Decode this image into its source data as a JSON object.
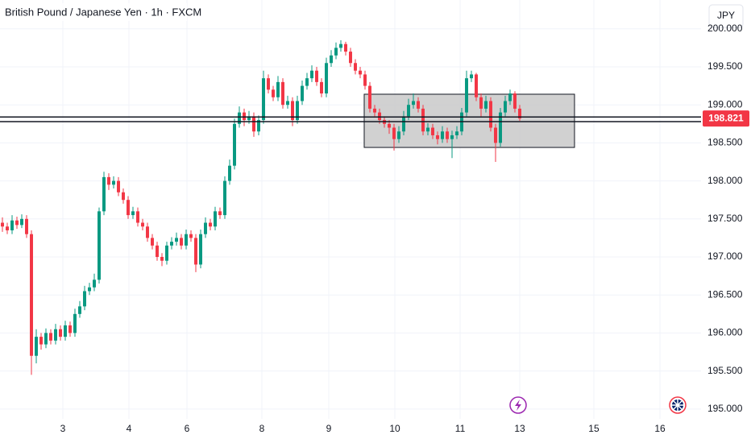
{
  "chart_data": {
    "type": "candlestick",
    "title": "British Pound / Japanese Yen · 1h · FXCM",
    "currency_button": "JPY",
    "up_color": "#089981",
    "down_color": "#f23645",
    "xlim": [
      0,
      145
    ],
    "xticks": [
      {
        "value": 13,
        "label": "3"
      },
      {
        "value": 26.67,
        "label": "4"
      },
      {
        "value": 38.67,
        "label": "6"
      },
      {
        "value": 54.17,
        "label": "8"
      },
      {
        "value": 68,
        "label": "9"
      },
      {
        "value": 81.67,
        "label": "10"
      },
      {
        "value": 95.17,
        "label": "11"
      },
      {
        "value": 107.5,
        "label": "13"
      },
      {
        "value": 122.83,
        "label": "15"
      },
      {
        "value": 136.5,
        "label": "16"
      }
    ],
    "ylim": [
      194.871,
      200.379
    ],
    "yticks": [
      {
        "value": 195,
        "label": "195.000"
      },
      {
        "value": 195.5,
        "label": "195.500"
      },
      {
        "value": 196,
        "label": "196.000"
      },
      {
        "value": 196.5,
        "label": "196.500"
      },
      {
        "value": 197,
        "label": "197.000"
      },
      {
        "value": 197.5,
        "label": "197.500"
      },
      {
        "value": 198,
        "label": "198.000"
      },
      {
        "value": 198.5,
        "label": "198.500"
      },
      {
        "value": 199,
        "label": "199.000"
      },
      {
        "value": 199.5,
        "label": "199.500"
      },
      {
        "value": 200,
        "label": "200.000"
      }
    ],
    "grid": true,
    "open": [
      197.45,
      197.4,
      197.35,
      197.48,
      197.42,
      197.5,
      197.3,
      195.7,
      195.95,
      195.85,
      196.0,
      195.9,
      196.05,
      195.95,
      196.1,
      196.0,
      196.25,
      196.35,
      196.55,
      196.6,
      196.7,
      197.6,
      198.05,
      197.95,
      198.0,
      197.85,
      197.75,
      197.55,
      197.6,
      197.45,
      197.4,
      197.25,
      197.15,
      197.0,
      196.95,
      197.15,
      197.2,
      197.25,
      197.15,
      197.3,
      197.25,
      196.9,
      197.3,
      197.45,
      197.4,
      197.6,
      197.55,
      198.0,
      198.2,
      198.75,
      198.9,
      198.8,
      198.85,
      198.65,
      198.8,
      199.35,
      199.2,
      199.1,
      199.3,
      199.0,
      199.05,
      198.8,
      199.05,
      199.25,
      199.35,
      199.45,
      199.3,
      199.15,
      199.55,
      199.65,
      199.75,
      199.8,
      199.7,
      199.55,
      199.45,
      199.4,
      199.25,
      198.95,
      198.9,
      198.8,
      198.75,
      198.7,
      198.55,
      198.65,
      198.85,
      199.0,
      199.05,
      198.95,
      198.65,
      198.7,
      198.6,
      198.55,
      198.65,
      198.55,
      198.6,
      198.65,
      198.9,
      199.35,
      199.4,
      199.1,
      198.95,
      199.05,
      198.7,
      198.5,
      198.9,
      199.05,
      199.15,
      198.95
    ],
    "high": [
      197.52,
      197.45,
      197.55,
      197.53,
      197.56,
      197.55,
      197.35,
      196.05,
      196.0,
      196.06,
      196.05,
      196.12,
      196.1,
      196.16,
      196.15,
      196.32,
      196.42,
      196.62,
      196.66,
      196.78,
      197.65,
      198.12,
      198.1,
      198.06,
      198.05,
      197.9,
      197.8,
      197.66,
      197.65,
      197.5,
      197.45,
      197.3,
      197.2,
      197.05,
      197.2,
      197.26,
      197.32,
      197.3,
      197.36,
      197.35,
      197.3,
      197.36,
      197.52,
      197.5,
      197.66,
      197.65,
      198.06,
      198.28,
      198.82,
      198.98,
      198.95,
      198.92,
      198.9,
      198.86,
      199.45,
      199.4,
      199.25,
      199.38,
      199.35,
      199.12,
      199.1,
      199.12,
      199.32,
      199.42,
      199.52,
      199.5,
      199.35,
      199.62,
      199.72,
      199.82,
      199.85,
      199.83,
      199.75,
      199.6,
      199.5,
      199.45,
      199.3,
      199.0,
      198.95,
      198.85,
      198.8,
      198.75,
      198.72,
      198.92,
      199.08,
      199.15,
      199.1,
      199.0,
      198.76,
      198.75,
      198.65,
      198.72,
      198.7,
      198.66,
      198.72,
      198.96,
      199.45,
      199.45,
      199.42,
      199.15,
      199.12,
      199.1,
      198.75,
      198.96,
      199.12,
      199.2,
      199.18,
      199.0
    ],
    "low": [
      197.33,
      197.3,
      197.3,
      197.37,
      197.38,
      197.25,
      195.45,
      195.6,
      195.78,
      195.8,
      195.85,
      195.85,
      195.9,
      195.9,
      195.95,
      195.95,
      196.2,
      196.3,
      196.5,
      196.55,
      196.65,
      197.55,
      197.88,
      197.9,
      197.8,
      197.7,
      197.5,
      197.5,
      197.4,
      197.35,
      197.2,
      197.1,
      196.95,
      196.88,
      196.9,
      197.1,
      197.15,
      197.1,
      197.1,
      197.2,
      196.8,
      196.85,
      197.25,
      197.35,
      197.35,
      197.5,
      197.5,
      197.95,
      198.15,
      198.7,
      198.72,
      198.75,
      198.58,
      198.6,
      198.75,
      199.15,
      199.05,
      199.05,
      198.95,
      198.95,
      198.72,
      198.75,
      199.0,
      199.2,
      199.3,
      199.25,
      199.1,
      199.1,
      199.5,
      199.6,
      199.7,
      199.65,
      199.5,
      199.4,
      199.35,
      199.2,
      198.9,
      198.85,
      198.75,
      198.7,
      198.62,
      198.4,
      198.5,
      198.6,
      198.8,
      198.95,
      198.9,
      198.6,
      198.6,
      198.55,
      198.48,
      198.5,
      198.5,
      198.3,
      198.55,
      198.6,
      198.85,
      199.3,
      199.05,
      198.85,
      198.9,
      198.65,
      198.25,
      198.45,
      198.85,
      199.0,
      198.9,
      198.79
    ],
    "close": [
      197.4,
      197.35,
      197.48,
      197.42,
      197.5,
      197.3,
      195.7,
      195.95,
      195.85,
      196.0,
      195.9,
      196.05,
      195.95,
      196.1,
      196.0,
      196.25,
      196.35,
      196.55,
      196.6,
      196.7,
      197.6,
      198.05,
      197.95,
      198.0,
      197.85,
      197.75,
      197.55,
      197.6,
      197.45,
      197.4,
      197.25,
      197.15,
      197.0,
      196.95,
      197.15,
      197.2,
      197.25,
      197.15,
      197.3,
      197.25,
      196.9,
      197.3,
      197.45,
      197.4,
      197.6,
      197.55,
      198.0,
      198.2,
      198.75,
      198.9,
      198.8,
      198.85,
      198.65,
      198.8,
      199.35,
      199.2,
      199.1,
      199.3,
      199.0,
      199.05,
      198.8,
      199.05,
      199.25,
      199.35,
      199.45,
      199.3,
      199.15,
      199.55,
      199.65,
      199.75,
      199.8,
      199.7,
      199.55,
      199.45,
      199.4,
      199.25,
      198.95,
      198.9,
      198.8,
      198.75,
      198.7,
      198.55,
      198.65,
      198.85,
      199.0,
      199.05,
      198.95,
      198.65,
      198.7,
      198.6,
      198.55,
      198.65,
      198.55,
      198.6,
      198.65,
      198.9,
      199.35,
      199.4,
      199.1,
      198.95,
      199.05,
      198.7,
      198.5,
      198.9,
      199.05,
      199.15,
      198.95,
      198.821
    ],
    "last_price": 198.821,
    "last_price_color": "#f23645",
    "hlines": [
      198.84,
      198.78
    ],
    "box": {
      "x": [
        75.33,
        118.83
      ],
      "y": [
        198.44,
        199.14
      ],
      "color": "#c9c9c9"
    }
  }
}
